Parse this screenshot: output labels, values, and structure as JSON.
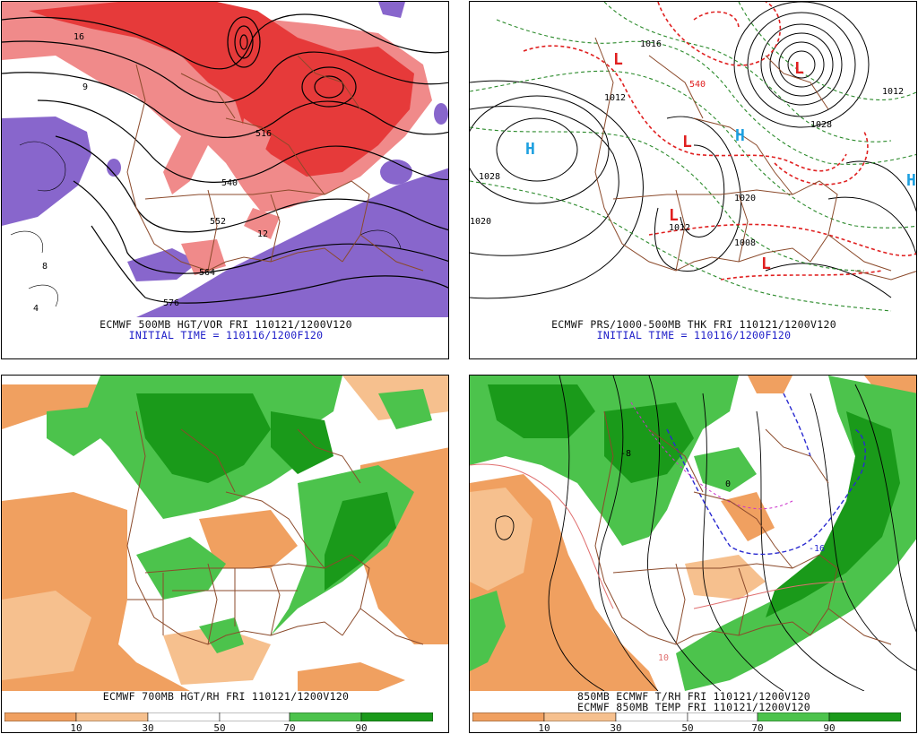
{
  "panels": [
    {
      "title": "ECMWF 500MB HGT/VOR FRI 110121/1200V120",
      "subtitle": "INITIAL TIME = 110116/1200F120",
      "labels": [
        "16",
        "9",
        "516",
        "540",
        "552",
        "12",
        "564",
        "576",
        "4",
        "8"
      ]
    },
    {
      "title": "ECMWF PRS/1000-500MB THK FRI 110121/1200V120",
      "subtitle": "INITIAL TIME = 110116/1200F120",
      "labels": [
        "1028",
        "1020",
        "1020",
        "1012",
        "1016",
        "1012",
        "1012",
        "1008",
        "1028",
        "540",
        "H",
        "H",
        "H",
        "L",
        "L",
        "L",
        "L",
        "L"
      ]
    },
    {
      "title": "ECMWF 700MB HGT/RH FRI 110121/1200V120",
      "legend_ticks": [
        "10",
        "30",
        "50",
        "70",
        "90"
      ]
    },
    {
      "title": "850MB ECMWF T/RH FRI 110121/1200V120",
      "subtitle": "ECMWF 850MB TEMP FRI 110121/1200V120",
      "legend_ticks": [
        "10",
        "30",
        "50",
        "70",
        "90"
      ],
      "labels": [
        "-16",
        "0",
        "-8",
        "10"
      ]
    }
  ],
  "colors": {
    "vorticity_red": "#e63a3a",
    "vorticity_pink": "#f08a8a",
    "negative_vort": "#8866cc",
    "rh_green_dark": "#1a9a1a",
    "rh_green_light": "#4cc34c",
    "rh_orange": "#f0a060",
    "rh_orange_light": "#f6c08e",
    "border_brown": "#8b4a2b",
    "contour_black": "#000000",
    "thickness_red": "#e02020",
    "thickness_green": "#2b8a2b",
    "caption_blue": "#1d1dc8",
    "high_cyan": "#1ea0e0"
  }
}
